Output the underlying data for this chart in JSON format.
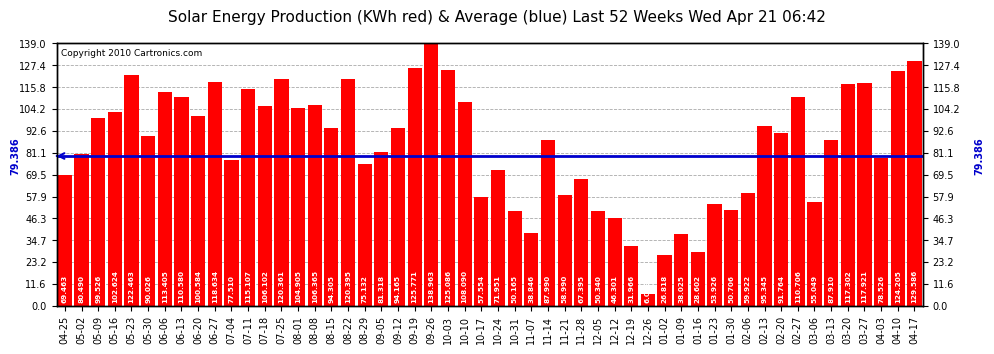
{
  "title": "Solar Energy Production (KWh red) & Average (blue) Last 52 Weeks Wed Apr 21 06:42",
  "copyright": "Copyright 2010 Cartronics.com",
  "average_value": 79.386,
  "bar_color": "#ff0000",
  "average_color": "#0000cc",
  "background_color": "#ffffff",
  "plot_bg_color": "#ffffff",
  "grid_color": "#aaaaaa",
  "ylim": [
    0,
    139.0
  ],
  "yticks": [
    0.0,
    11.6,
    23.2,
    34.7,
    46.3,
    57.9,
    69.5,
    81.1,
    92.6,
    104.2,
    115.8,
    127.4,
    139.0
  ],
  "categories": [
    "04-25",
    "05-02",
    "05-09",
    "05-16",
    "05-23",
    "05-30",
    "06-06",
    "06-13",
    "06-20",
    "06-27",
    "07-04",
    "07-11",
    "07-18",
    "07-25",
    "08-01",
    "08-08",
    "08-15",
    "08-22",
    "08-29",
    "09-05",
    "09-12",
    "09-19",
    "09-26",
    "10-03",
    "10-10",
    "10-17",
    "10-24",
    "10-31",
    "11-07",
    "11-14",
    "11-21",
    "11-28",
    "12-05",
    "12-12",
    "12-19",
    "12-26",
    "01-02",
    "01-09",
    "01-16",
    "01-23",
    "01-30",
    "02-06",
    "02-13",
    "02-20",
    "02-27",
    "03-06",
    "03-13",
    "03-20",
    "03-27",
    "04-03",
    "04-10",
    "04-17"
  ],
  "values": [
    69.463,
    80.49,
    99.526,
    102.624,
    122.463,
    90.026,
    113.405,
    110.58,
    100.584,
    118.634,
    77.51,
    115.107,
    106.102,
    120.361,
    104.905,
    106.365,
    94.305,
    120.395,
    75.132,
    81.318,
    94.165,
    125.771,
    138.963,
    125.086,
    108.09,
    57.554,
    71.951,
    50.165,
    38.846,
    87.99,
    58.99,
    67.395,
    50.34,
    46.301,
    31.966,
    6.079,
    26.818,
    38.025,
    28.602,
    53.926,
    50.706,
    59.922,
    95.345,
    91.764,
    110.706,
    55.049,
    87.91,
    117.302,
    117.921,
    78.526,
    124.205,
    129.586
  ],
  "avg_label": "79.386",
  "title_fontsize": 11,
  "tick_fontsize": 7,
  "value_fontsize": 5.2,
  "copyright_fontsize": 6.5
}
